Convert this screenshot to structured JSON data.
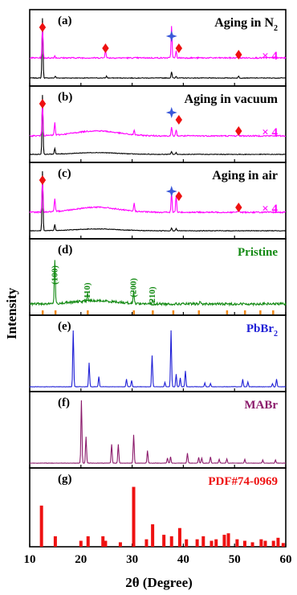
{
  "chart_data": {
    "type": "line",
    "xlabel": "2θ (Degree)",
    "ylabel": "Intensity",
    "xlim": [
      10,
      60
    ],
    "xticks": [
      10,
      20,
      30,
      40,
      50,
      60
    ],
    "colors": {
      "black": "#000000",
      "magenta": "#ff00ff",
      "green": "#138a13",
      "blue": "#1f1fd6",
      "purple": "#8b1a6b",
      "red": "#ee1111",
      "orange": "#f28a1c",
      "star": "#3b59d9"
    },
    "panels": [
      {
        "letter": "(a)",
        "title": "Aging in N",
        "title_sub": "2",
        "scale_label": "× 4",
        "diamond_peaks": [
          12.5,
          24.8,
          38.5,
          50.8
        ],
        "star_peaks": [
          37.7
        ],
        "series": [
          {
            "color": "black",
            "peaks": [
              [
                12.5,
                1.0
              ],
              [
                15.0,
                0.03
              ],
              [
                25.0,
                0.03
              ],
              [
                37.7,
                0.1
              ],
              [
                38.6,
                0.03
              ],
              [
                50.8,
                0.03
              ]
            ]
          },
          {
            "color": "magenta",
            "peaks": [
              [
                12.5,
                0.75
              ],
              [
                14.9,
                0.05
              ],
              [
                24.8,
                0.2
              ],
              [
                37.7,
                0.75
              ],
              [
                38.6,
                0.16
              ],
              [
                50.8,
                0.15
              ]
            ]
          }
        ]
      },
      {
        "letter": "(b)",
        "title": "Aging in vacuum",
        "scale_label": "× 4",
        "diamond_peaks": [
          12.5,
          38.5,
          50.8
        ],
        "star_peaks": [
          37.7
        ],
        "series": [
          {
            "color": "black",
            "peaks": [
              [
                12.5,
                1.0
              ],
              [
                14.9,
                0.1
              ],
              [
                37.7,
                0.05
              ],
              [
                38.6,
                0.03
              ]
            ]
          },
          {
            "color": "magenta",
            "peaks": [
              [
                12.5,
                0.8
              ],
              [
                14.9,
                0.3
              ],
              [
                30.4,
                0.1
              ],
              [
                37.7,
                0.2
              ],
              [
                38.6,
                0.15
              ],
              [
                50.8,
                0.05
              ]
            ]
          }
        ]
      },
      {
        "letter": "(c)",
        "title": "Aging in air",
        "scale_label": "× 4",
        "diamond_peaks": [
          12.5,
          38.5,
          50.8
        ],
        "star_peaks": [
          37.7
        ],
        "series": [
          {
            "color": "black",
            "peaks": [
              [
                12.5,
                1.0
              ],
              [
                14.9,
                0.1
              ],
              [
                37.7,
                0.05
              ],
              [
                38.6,
                0.04
              ]
            ]
          },
          {
            "color": "magenta",
            "peaks": [
              [
                12.5,
                0.8
              ],
              [
                14.9,
                0.3
              ],
              [
                30.4,
                0.2
              ],
              [
                37.7,
                0.48
              ],
              [
                38.6,
                0.4
              ],
              [
                50.8,
                0.1
              ]
            ]
          }
        ]
      },
      {
        "letter": "(d)",
        "title": "Pristine",
        "title_color": "green",
        "miller": [
          {
            "label": "(100)",
            "x": 14.9
          },
          {
            "label": "(110)",
            "x": 21.3
          },
          {
            "label": "(200)",
            "x": 30.3
          },
          {
            "label": "(210)",
            "x": 34.0
          }
        ],
        "series": [
          {
            "color": "green",
            "peaks": [
              [
                14.9,
                0.72
              ],
              [
                21.3,
                0.13
              ],
              [
                30.3,
                0.2
              ],
              [
                34.0,
                0.06
              ],
              [
                43.3,
                0.04
              ]
            ]
          }
        ],
        "reference_bars_x": [
          12.5,
          15,
          21.3,
          30.3,
          34,
          38,
          43,
          48.5,
          52,
          55,
          57.5
        ]
      },
      {
        "letter": "(e)",
        "title": "PbBr",
        "title_sub": "2",
        "title_color": "blue",
        "series": [
          {
            "color": "blue",
            "peaks": [
              [
                18.5,
                0.9
              ],
              [
                21.6,
                0.38
              ],
              [
                23.5,
                0.16
              ],
              [
                28.9,
                0.12
              ],
              [
                29.9,
                0.1
              ],
              [
                33.9,
                0.5
              ],
              [
                36.4,
                0.07
              ],
              [
                37.6,
                0.9
              ],
              [
                38.6,
                0.2
              ],
              [
                39.4,
                0.14
              ],
              [
                40.4,
                0.25
              ],
              [
                44.2,
                0.06
              ],
              [
                45.3,
                0.05
              ],
              [
                51.6,
                0.12
              ],
              [
                52.6,
                0.08
              ],
              [
                57.4,
                0.05
              ],
              [
                58.2,
                0.12
              ]
            ]
          }
        ]
      },
      {
        "letter": "(f)",
        "title": "MABr",
        "title_color": "purple",
        "series": [
          {
            "color": "purple",
            "peaks": [
              [
                20.1,
                1.0
              ],
              [
                21.0,
                0.42
              ],
              [
                26.0,
                0.3
              ],
              [
                27.3,
                0.3
              ],
              [
                30.3,
                0.45
              ],
              [
                33.0,
                0.2
              ],
              [
                36.9,
                0.08
              ],
              [
                37.5,
                0.1
              ],
              [
                40.8,
                0.16
              ],
              [
                43.0,
                0.09
              ],
              [
                43.6,
                0.08
              ],
              [
                45.3,
                0.1
              ],
              [
                47.0,
                0.06
              ],
              [
                48.5,
                0.07
              ],
              [
                52.0,
                0.06
              ],
              [
                55.5,
                0.05
              ],
              [
                58.0,
                0.05
              ]
            ]
          }
        ]
      },
      {
        "letter": "(g)",
        "title": "PDF#74-0969",
        "title_color": "red",
        "bars": [
          [
            12.3,
            0.55
          ],
          [
            15.0,
            0.14
          ],
          [
            20.0,
            0.08
          ],
          [
            21.4,
            0.14
          ],
          [
            24.3,
            0.14
          ],
          [
            24.8,
            0.08
          ],
          [
            27.7,
            0.06
          ],
          [
            30.3,
            0.8
          ],
          [
            32.8,
            0.1
          ],
          [
            34.0,
            0.3
          ],
          [
            36.2,
            0.16
          ],
          [
            37.7,
            0.14
          ],
          [
            39.3,
            0.25
          ],
          [
            40.6,
            0.1
          ],
          [
            42.7,
            0.1
          ],
          [
            43.9,
            0.14
          ],
          [
            45.5,
            0.08
          ],
          [
            46.4,
            0.1
          ],
          [
            48.0,
            0.16
          ],
          [
            48.8,
            0.18
          ],
          [
            50.5,
            0.1
          ],
          [
            52.0,
            0.08
          ],
          [
            53.5,
            0.06
          ],
          [
            55.2,
            0.1
          ],
          [
            56.0,
            0.08
          ],
          [
            57.6,
            0.08
          ],
          [
            58.5,
            0.12
          ],
          [
            59.5,
            0.05
          ]
        ]
      }
    ]
  }
}
